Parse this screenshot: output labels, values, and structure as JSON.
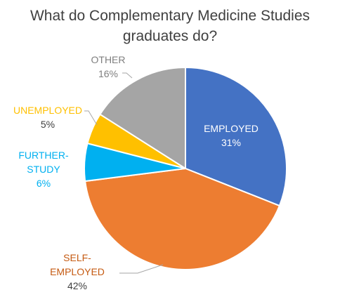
{
  "chart_data": {
    "type": "pie",
    "title_lines": [
      "What do Complementary Medicine Studies",
      "graduates do?"
    ],
    "start_angle_deg": 0,
    "direction": "clockwise",
    "slices": [
      {
        "label_lines": [
          "EMPLOYED"
        ],
        "value": 31,
        "value_label": "31%",
        "color": "#4472C4",
        "label_color": "#FFFFFF",
        "value_color": "#FFFFFF",
        "label_position": "inside"
      },
      {
        "label_lines": [
          "SELF-",
          "EMPLOYED"
        ],
        "value": 42,
        "value_label": "42%",
        "color": "#ED7D31",
        "label_color": "#C55A11",
        "value_color": "#404040",
        "label_position": "outside"
      },
      {
        "label_lines": [
          "FURTHER-",
          "STUDY"
        ],
        "value": 6,
        "value_label": "6%",
        "color": "#00B0F0",
        "label_color": "#00B0F0",
        "value_color": "#00B0F0",
        "label_position": "outside"
      },
      {
        "label_lines": [
          "UNEMPLOYED"
        ],
        "value": 5,
        "value_label": "5%",
        "color": "#FFC000",
        "label_color": "#FFC000",
        "value_color": "#404040",
        "label_position": "outside"
      },
      {
        "label_lines": [
          "OTHER"
        ],
        "value": 16,
        "value_label": "16%",
        "color": "#A5A5A5",
        "label_color": "#7F7F7F",
        "value_color": "#7F7F7F",
        "label_position": "outside"
      }
    ]
  }
}
